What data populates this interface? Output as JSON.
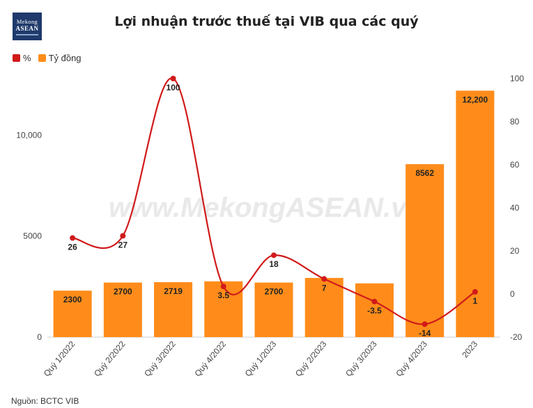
{
  "logo": {
    "line1": "Mekong",
    "line2": "ASEAN"
  },
  "title": "Lợi nhuận trước thuế tại VIB qua các quý",
  "watermark": "www.MekongASEAN.vn",
  "source": "Nguồn: BCTC VIB",
  "colors": {
    "bar": "#ff8c1a",
    "line": "#d11a1a",
    "grid": "#e6e6e6",
    "axis_text": "#444444"
  },
  "chart_data": {
    "type": "bar",
    "categories": [
      "Quý 1/2022",
      "Quý 2/2022",
      "Quý 3/2022",
      "Quý 4/2022",
      "Quý 1/2023",
      "Quý 2/2023",
      "Quý 3/2023",
      "Quý 4/2023",
      "2023"
    ],
    "series": [
      {
        "name": "Tỷ đồng",
        "type": "bar",
        "axis": "left",
        "values": [
          2300,
          2700,
          2719,
          2760,
          2700,
          2930,
          2660,
          8562,
          12200
        ],
        "labels": [
          "2300",
          "2700",
          "2719",
          "",
          "2700",
          "",
          "",
          "8562",
          "12,200"
        ]
      },
      {
        "name": "%",
        "type": "line",
        "axis": "right",
        "values": [
          26,
          27,
          100,
          3.5,
          18,
          7,
          -3.5,
          -14,
          1
        ],
        "labels": [
          "26",
          "27",
          "100",
          "3.5",
          "18",
          "7",
          "-3.5",
          "-14",
          "1"
        ]
      }
    ],
    "y_left": {
      "lim": [
        0,
        12800
      ],
      "ticks": [
        0,
        5000,
        10000
      ],
      "tick_labels": [
        "0",
        "5000",
        "10,000"
      ]
    },
    "y_right": {
      "lim": [
        -20,
        100
      ],
      "ticks": [
        -20,
        0,
        20,
        40,
        60,
        80,
        100
      ],
      "tick_labels": [
        "-20",
        "0",
        "20",
        "40",
        "60",
        "80",
        "100"
      ]
    },
    "legend": {
      "position": "top-left",
      "items": [
        "%",
        "Tỷ đồng"
      ]
    },
    "grid": false
  }
}
